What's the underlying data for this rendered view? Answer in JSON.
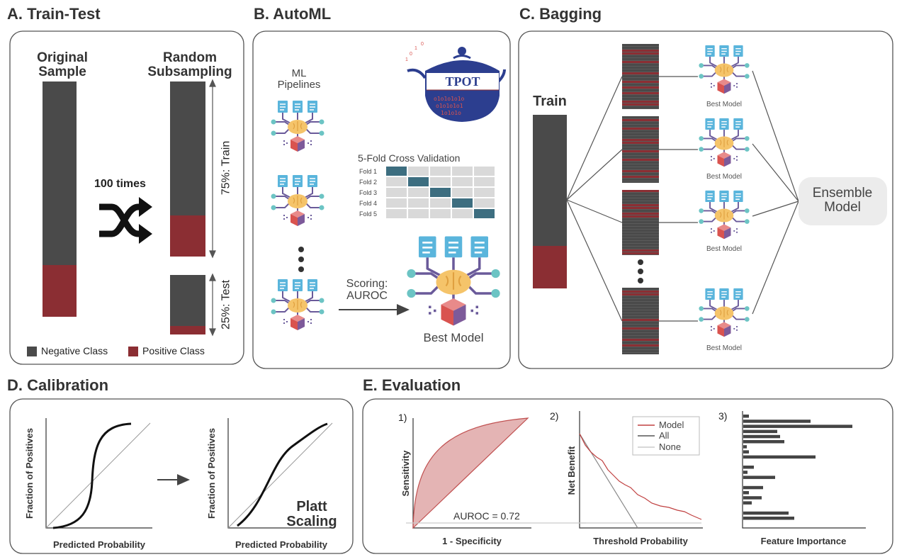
{
  "panels": {
    "train_test": {
      "title": "A. Train-Test",
      "original": "Original Sample",
      "random": "Random Subsampling",
      "repeat": "100 times",
      "train": "75%: Train",
      "test": "25%: Test",
      "legend": [
        "Negative Class",
        "Positive Class"
      ]
    },
    "automl": {
      "title": "B. AutoML",
      "pipelines": "ML Pipelines",
      "logo": "TPOT",
      "cv_title": "5-Fold Cross Validation",
      "folds": [
        "Fold 1",
        "Fold 2",
        "Fold 3",
        "Fold 4",
        "Fold 5"
      ],
      "scoring": "Scoring: AUROC",
      "best": "Best Model"
    },
    "bagging": {
      "title": "C. Bagging",
      "train": "Train",
      "models": [
        "Best Model",
        "Best Model",
        "Best Model",
        "Best Model"
      ],
      "ensemble": "Ensemble Model"
    },
    "calibration": {
      "title": "D. Calibration",
      "ylabels": [
        "Fraction of Positives",
        "Fraction of Positives"
      ],
      "xlabels": [
        "Predicted Probability",
        "Predicted Probability"
      ],
      "method": "Platt Scaling"
    },
    "evaluation": {
      "title": "E. Evaluation",
      "roc": {
        "index": "1)",
        "ylabel": "Sensitivity",
        "xlabel": "1 - Specificity",
        "auroc": "AUROC = 0.72"
      },
      "dca": {
        "index": "2)",
        "ylabel": "Net Benefit",
        "xlabel": "Threshold Probability",
        "legend": [
          "Model",
          "All",
          "None"
        ]
      },
      "fi": {
        "index": "3)",
        "xlabel": "Feature Importance"
      }
    }
  }
}
